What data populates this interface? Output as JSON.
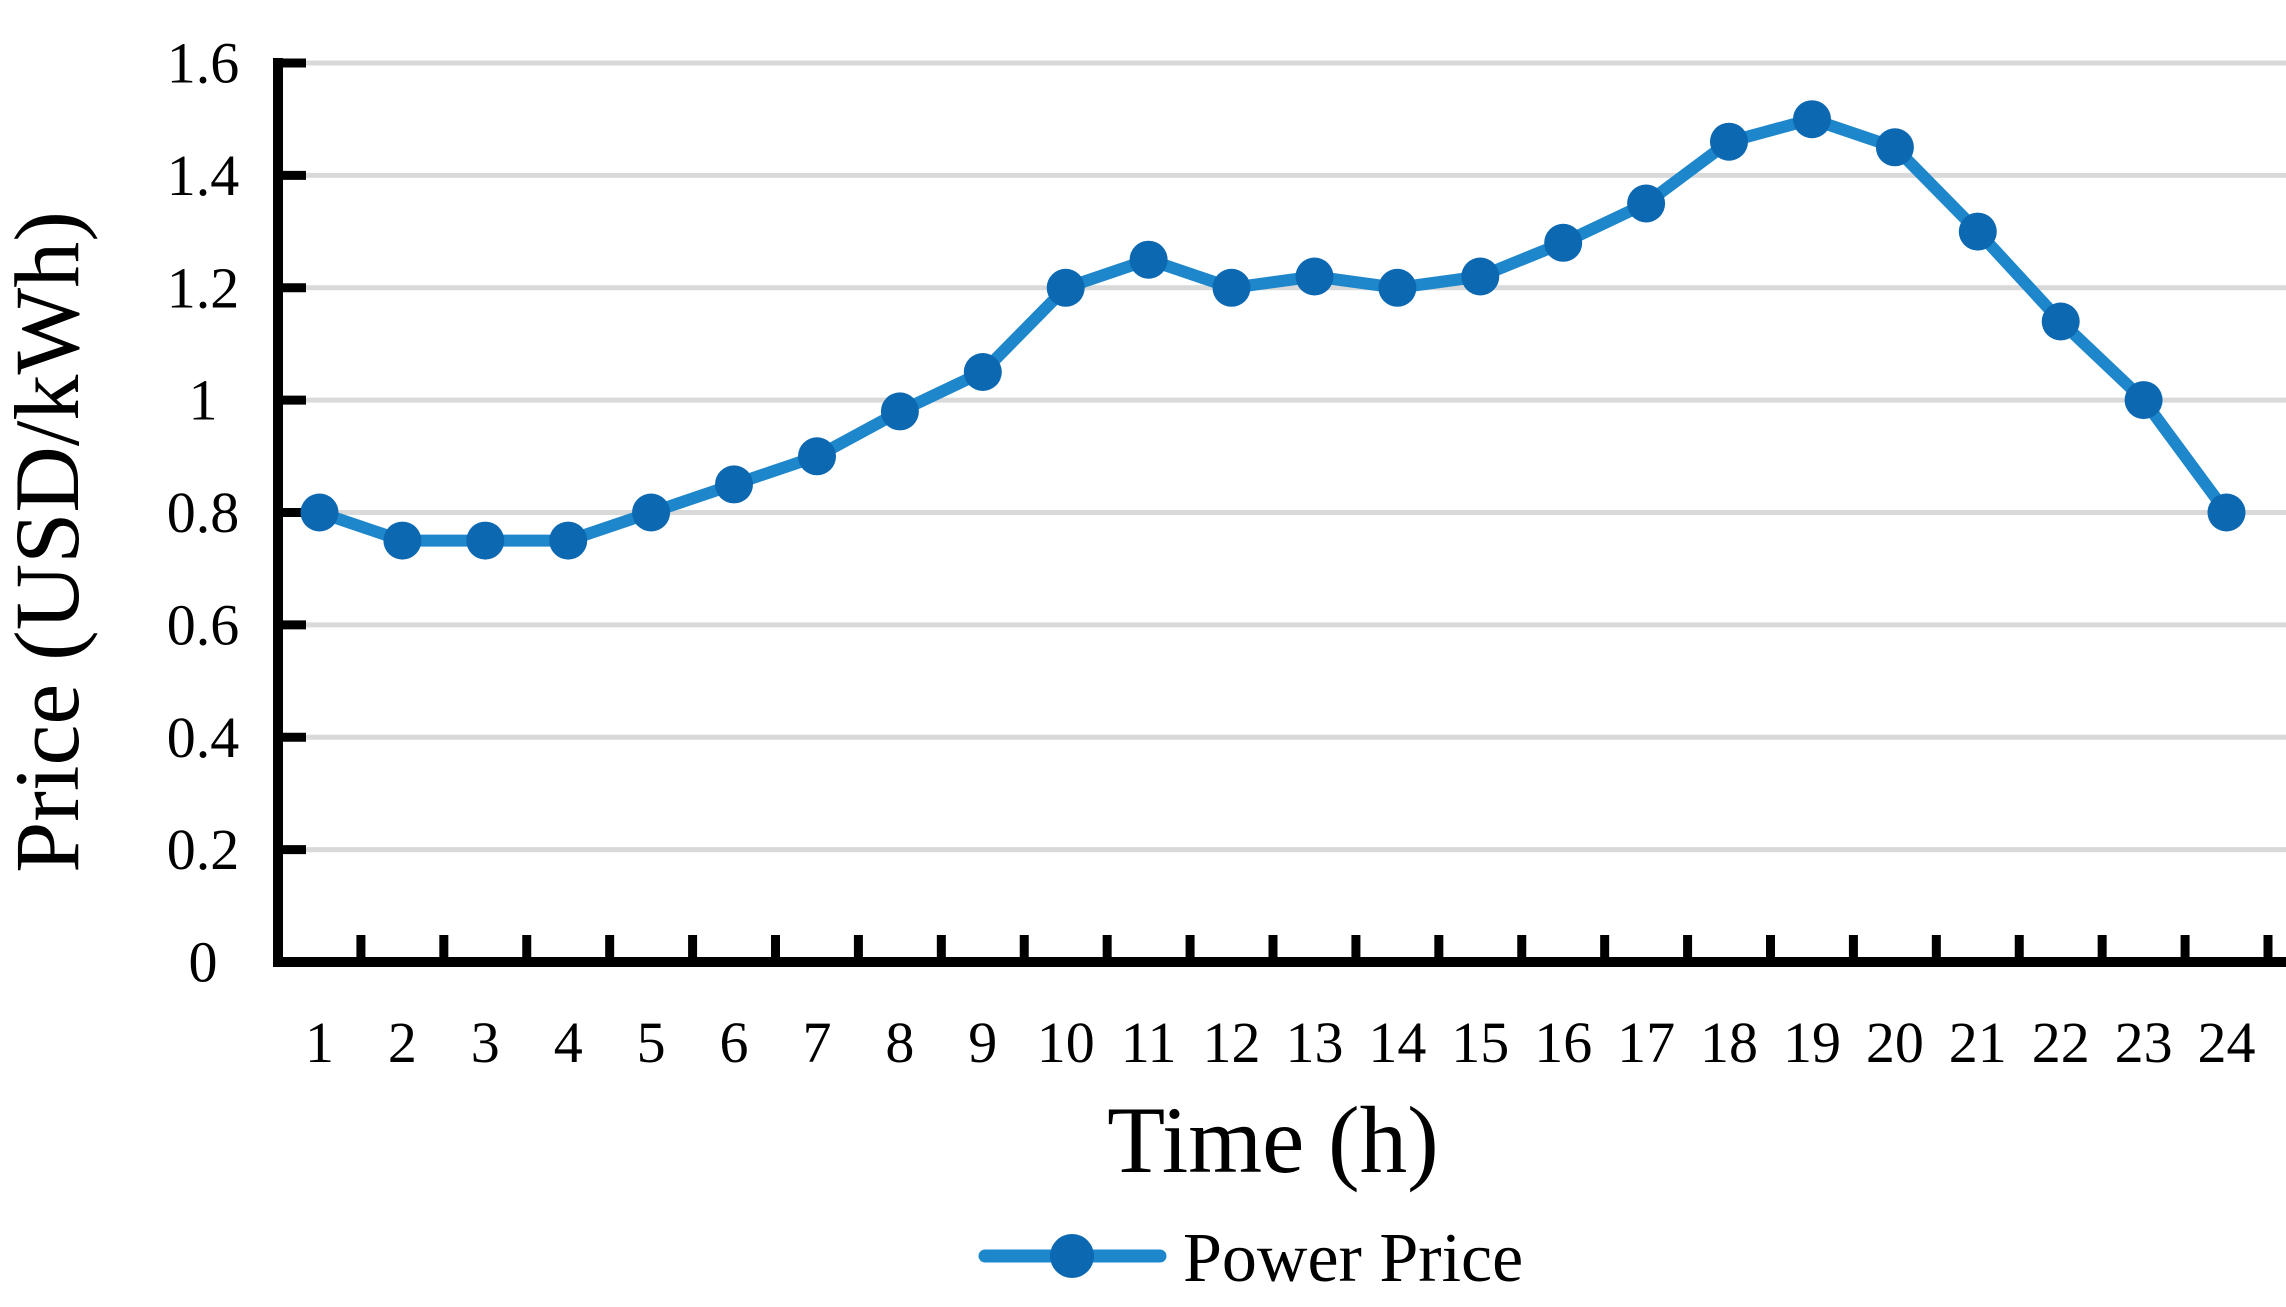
{
  "figure": {
    "background": "#ffffff"
  },
  "chart_data": {
    "type": "line",
    "x": [
      1,
      2,
      3,
      4,
      5,
      6,
      7,
      8,
      9,
      10,
      11,
      12,
      13,
      14,
      15,
      16,
      17,
      18,
      19,
      20,
      21,
      22,
      23,
      24
    ],
    "series": [
      {
        "name": "Power Price",
        "values": [
          0.8,
          0.75,
          0.75,
          0.75,
          0.8,
          0.85,
          0.9,
          0.98,
          1.05,
          1.2,
          1.25,
          1.2,
          1.22,
          1.2,
          1.22,
          1.28,
          1.35,
          1.46,
          1.5,
          1.45,
          1.3,
          1.14,
          1.0,
          0.8
        ]
      }
    ],
    "title": "",
    "xlabel": "Time (h)",
    "ylabel": "Price (USD/kWh)",
    "ylim": [
      0,
      1.6
    ],
    "y_ticks": [
      0,
      0.2,
      0.4,
      0.6,
      0.8,
      1,
      1.2,
      1.4,
      1.6
    ],
    "y_tick_labels": [
      "0",
      "0.2",
      "0.4",
      "0.6",
      "0.8",
      "1",
      "1.2",
      "1.4",
      "1.6"
    ],
    "grid": "horizontal",
    "legend_position": "bottom",
    "marker": "circle",
    "colors": {
      "line": "#1E87CB",
      "marker": "#0D68B2",
      "gridline": "#D9D9D9",
      "axis": "#000000"
    }
  }
}
